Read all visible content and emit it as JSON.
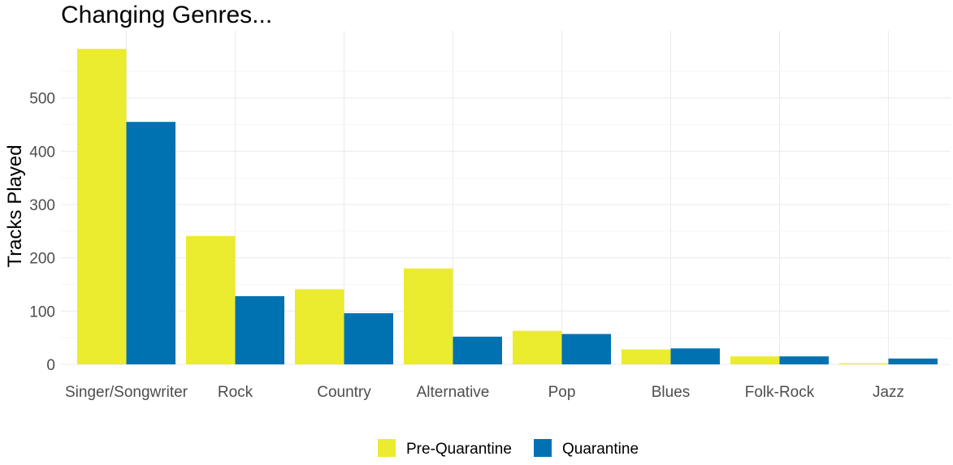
{
  "chart_data": {
    "type": "bar",
    "title": "Changing Genres...",
    "xlabel": "",
    "ylabel": "Tracks Played",
    "categories": [
      "Singer/Songwriter",
      "Rock",
      "Country",
      "Alternative",
      "Pop",
      "Blues",
      "Folk-Rock",
      "Jazz"
    ],
    "series": [
      {
        "name": "Pre-Quarantine",
        "color": "#EBEB2F",
        "values": [
          592,
          241,
          141,
          180,
          63,
          28,
          15,
          2
        ]
      },
      {
        "name": "Quarantine",
        "color": "#0072B2",
        "values": [
          455,
          128,
          96,
          52,
          57,
          30,
          15,
          11
        ]
      }
    ],
    "ylim": [
      0,
      600
    ],
    "yticks": [
      0,
      100,
      200,
      300,
      400,
      500
    ],
    "grid": true,
    "legend_position": "bottom"
  }
}
